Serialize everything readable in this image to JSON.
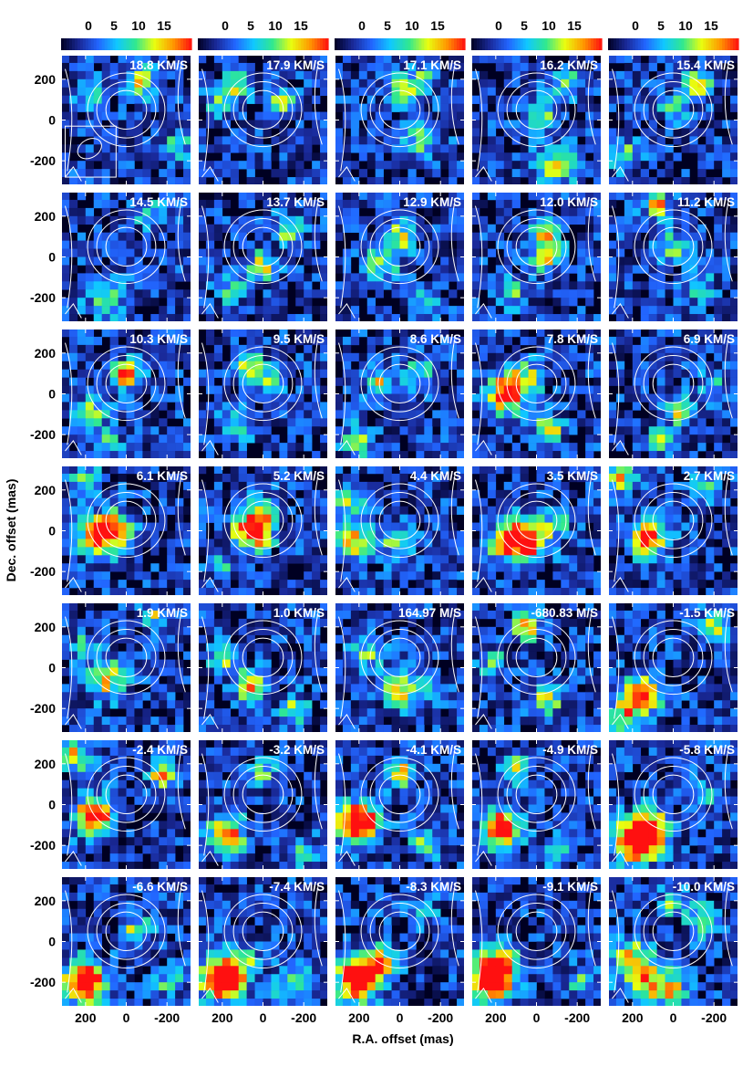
{
  "chart_data": {
    "type": "heatmap",
    "title": "",
    "xlabel": "R.A. offset (mas)",
    "ylabel": "Dec. offset (mas)",
    "colorbar": {
      "ticks": [
        0,
        5,
        10,
        15
      ],
      "range": [
        -3,
        19
      ],
      "colormap": [
        "#000022",
        "#1a2a9a",
        "#2266ff",
        "#10c8ff",
        "#30e890",
        "#e8ff10",
        "#ff9a00",
        "#ff1010"
      ]
    },
    "x_ticks": [
      "200",
      "0",
      "-200"
    ],
    "y_ticks": [
      "200",
      "0",
      "-200"
    ],
    "xlim": [
      320,
      -320
    ],
    "ylim": [
      -320,
      320
    ],
    "contour_center_mas": [
      0,
      50
    ],
    "contour_radii_mas": [
      100,
      145,
      190
    ],
    "panels": [
      {
        "label": "18.8 KM/S",
        "hotspots": [
          [
            -80,
            180,
            35,
            12
          ],
          [
            180,
            130,
            30,
            8
          ],
          [
            -250,
            -120,
            30,
            8
          ]
        ]
      },
      {
        "label": "17.9 KM/S",
        "hotspots": [
          [
            120,
            170,
            30,
            11
          ],
          [
            -100,
            80,
            30,
            11
          ],
          [
            220,
            80,
            30,
            7
          ]
        ]
      },
      {
        "label": "17.1 KM/S",
        "hotspots": [
          [
            0,
            150,
            30,
            12
          ],
          [
            -120,
            -100,
            40,
            9
          ],
          [
            -100,
            200,
            30,
            8
          ]
        ]
      },
      {
        "label": "16.2 KM/S",
        "hotspots": [
          [
            -20,
            40,
            30,
            12
          ],
          [
            -100,
            -220,
            40,
            14
          ],
          [
            -150,
            180,
            30,
            9
          ]
        ]
      },
      {
        "label": "15.4 KM/S",
        "hotspots": [
          [
            -120,
            180,
            30,
            14
          ],
          [
            0,
            60,
            30,
            8
          ],
          [
            240,
            -180,
            35,
            10
          ]
        ]
      },
      {
        "label": "14.5 KM/S",
        "hotspots": [
          [
            100,
            -200,
            40,
            10
          ],
          [
            -120,
            200,
            30,
            8
          ]
        ]
      },
      {
        "label": "13.7 KM/S",
        "hotspots": [
          [
            0,
            -40,
            30,
            12
          ],
          [
            -120,
            140,
            30,
            11
          ],
          [
            150,
            -150,
            35,
            8
          ]
        ]
      },
      {
        "label": "12.9 KM/S",
        "hotspots": [
          [
            0,
            100,
            30,
            13
          ],
          [
            80,
            -30,
            35,
            11
          ],
          [
            -120,
            -220,
            30,
            8
          ]
        ]
      },
      {
        "label": "12.0 KM/S",
        "hotspots": [
          [
            -50,
            0,
            30,
            15
          ],
          [
            -40,
            100,
            30,
            12
          ],
          [
            120,
            -180,
            30,
            9
          ]
        ]
      },
      {
        "label": "11.2 KM/S",
        "hotspots": [
          [
            80,
            260,
            30,
            14
          ],
          [
            0,
            50,
            30,
            9
          ],
          [
            -120,
            -150,
            35,
            8
          ]
        ]
      },
      {
        "label": "10.3 KM/S",
        "hotspots": [
          [
            0,
            90,
            30,
            18
          ],
          [
            170,
            -80,
            35,
            9
          ],
          [
            100,
            -250,
            30,
            8
          ]
        ]
      },
      {
        "label": "9.5 KM/S",
        "hotspots": [
          [
            60,
            130,
            30,
            14
          ],
          [
            -40,
            40,
            30,
            10
          ],
          [
            130,
            -160,
            35,
            8
          ]
        ]
      },
      {
        "label": "8.6 KM/S",
        "hotspots": [
          [
            100,
            50,
            30,
            13
          ],
          [
            200,
            -230,
            30,
            14
          ],
          [
            -100,
            100,
            35,
            8
          ]
        ]
      },
      {
        "label": "7.8 KM/S",
        "hotspots": [
          [
            150,
            0,
            40,
            20
          ],
          [
            50,
            80,
            35,
            10
          ],
          [
            -60,
            -180,
            30,
            13
          ]
        ]
      },
      {
        "label": "6.9 KM/S",
        "hotspots": [
          [
            -40,
            -80,
            30,
            13
          ],
          [
            60,
            -230,
            30,
            10
          ],
          [
            -200,
            50,
            30,
            7
          ]
        ]
      },
      {
        "label": "6.1 KM/S",
        "hotspots": [
          [
            60,
            0,
            40,
            19
          ],
          [
            150,
            -30,
            40,
            12
          ],
          [
            200,
            250,
            30,
            10
          ]
        ]
      },
      {
        "label": "5.2 KM/S",
        "hotspots": [
          [
            50,
            0,
            40,
            22
          ],
          [
            0,
            100,
            35,
            9
          ],
          [
            200,
            -180,
            30,
            8
          ]
        ]
      },
      {
        "label": "4.4 KM/S",
        "hotspots": [
          [
            220,
            -40,
            40,
            14
          ],
          [
            0,
            -60,
            35,
            11
          ],
          [
            250,
            150,
            30,
            12
          ]
        ]
      },
      {
        "label": "3.5 KM/S",
        "hotspots": [
          [
            40,
            -40,
            45,
            20
          ],
          [
            150,
            -60,
            40,
            12
          ],
          [
            -100,
            50,
            30,
            7
          ]
        ]
      },
      {
        "label": "2.7 KM/S",
        "hotspots": [
          [
            120,
            -30,
            40,
            18
          ],
          [
            -150,
            200,
            30,
            9
          ],
          [
            250,
            250,
            30,
            14
          ]
        ]
      },
      {
        "label": "1.9 KM/S",
        "hotspots": [
          [
            90,
            -60,
            40,
            14
          ],
          [
            200,
            100,
            30,
            9
          ],
          [
            -150,
            250,
            30,
            10
          ]
        ]
      },
      {
        "label": "1.0 KM/S",
        "hotspots": [
          [
            60,
            -90,
            30,
            20
          ],
          [
            200,
            50,
            30,
            11
          ],
          [
            -150,
            -200,
            30,
            10
          ]
        ]
      },
      {
        "label": "164.97 M/S",
        "hotspots": [
          [
            0,
            -120,
            35,
            14
          ],
          [
            150,
            80,
            35,
            9
          ],
          [
            -150,
            -80,
            30,
            8
          ]
        ]
      },
      {
        "label": "-680.83 M/S",
        "hotspots": [
          [
            50,
            200,
            30,
            14
          ],
          [
            -50,
            -150,
            35,
            12
          ],
          [
            220,
            30,
            30,
            8
          ]
        ]
      },
      {
        "label": "-1.5 KM/S",
        "hotspots": [
          [
            160,
            -140,
            40,
            20
          ],
          [
            -200,
            200,
            30,
            12
          ],
          [
            240,
            -240,
            30,
            12
          ]
        ]
      },
      {
        "label": "-2.4 KM/S",
        "hotspots": [
          [
            160,
            -60,
            40,
            22
          ],
          [
            250,
            240,
            30,
            14
          ],
          [
            -180,
            150,
            30,
            16
          ]
        ]
      },
      {
        "label": "-3.2 KM/S",
        "hotspots": [
          [
            180,
            -150,
            40,
            18
          ],
          [
            0,
            150,
            30,
            8
          ],
          [
            -200,
            -230,
            30,
            9
          ]
        ]
      },
      {
        "label": "-4.1 KM/S",
        "hotspots": [
          [
            200,
            -90,
            45,
            24
          ],
          [
            0,
            150,
            30,
            16
          ],
          [
            -120,
            -200,
            30,
            9
          ]
        ]
      },
      {
        "label": "-4.9 KM/S",
        "hotspots": [
          [
            170,
            -120,
            40,
            22
          ],
          [
            100,
            180,
            30,
            10
          ],
          [
            -100,
            -230,
            30,
            8
          ]
        ]
      },
      {
        "label": "-5.8 KM/S",
        "hotspots": [
          [
            180,
            -180,
            45,
            25
          ],
          [
            100,
            -100,
            40,
            14
          ],
          [
            -150,
            50,
            30,
            8
          ]
        ]
      },
      {
        "label": "-6.6 KM/S",
        "hotspots": [
          [
            200,
            -200,
            45,
            26
          ],
          [
            -50,
            50,
            30,
            12
          ],
          [
            -220,
            -200,
            30,
            9
          ]
        ]
      },
      {
        "label": "-7.4 KM/S",
        "hotspots": [
          [
            200,
            -180,
            45,
            26
          ],
          [
            -150,
            -220,
            40,
            10
          ],
          [
            100,
            -100,
            30,
            9
          ]
        ]
      },
      {
        "label": "-8.3 KM/S",
        "hotspots": [
          [
            200,
            -180,
            45,
            26
          ],
          [
            100,
            -100,
            35,
            12
          ],
          [
            -120,
            150,
            30,
            7
          ]
        ]
      },
      {
        "label": "-9.1 KM/S",
        "hotspots": [
          [
            220,
            -180,
            45,
            26
          ],
          [
            150,
            -100,
            35,
            11
          ],
          [
            -220,
            -200,
            30,
            8
          ]
        ]
      },
      {
        "label": "-10.0 KM/S",
        "hotspots": [
          [
            200,
            -100,
            45,
            14
          ],
          [
            100,
            -200,
            40,
            12
          ],
          [
            0,
            -250,
            35,
            11
          ],
          [
            -150,
            100,
            35,
            10
          ],
          [
            0,
            200,
            30,
            9
          ]
        ]
      }
    ]
  }
}
